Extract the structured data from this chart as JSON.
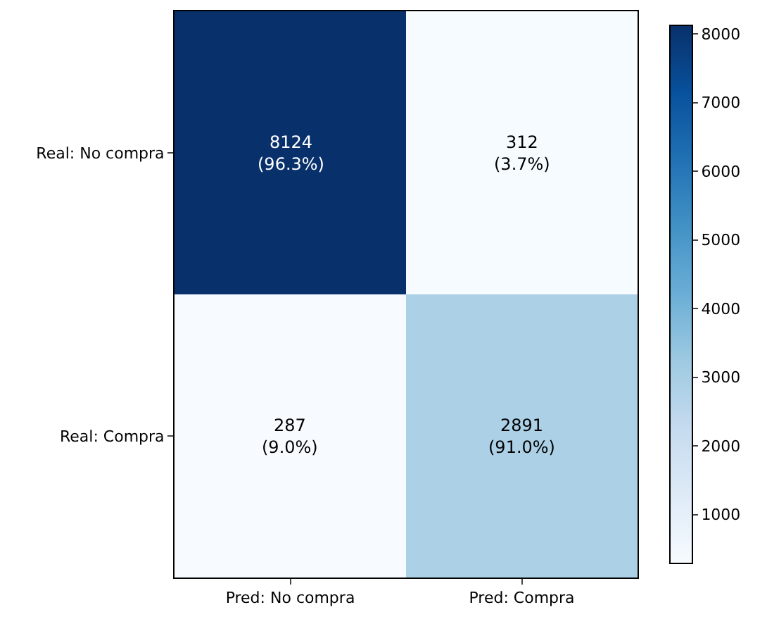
{
  "chart_data": {
    "type": "heatmap",
    "categories": [
      "Pred: No compra",
      "Pred: Compra"
    ],
    "y_categories": [
      "Real: No compra",
      "Real: Compra"
    ],
    "cells": [
      [
        8124,
        312
      ],
      [
        287,
        2891
      ]
    ],
    "cell_labels": [
      [
        "8124\n(96.3%)",
        "312\n(3.7%)"
      ],
      [
        "287\n(9.0%)",
        "2891\n(91.0%)"
      ]
    ],
    "clim": [
      287,
      8124
    ],
    "cticks": [
      1000,
      2000,
      3000,
      4000,
      5000,
      6000,
      7000,
      8000
    ]
  }
}
